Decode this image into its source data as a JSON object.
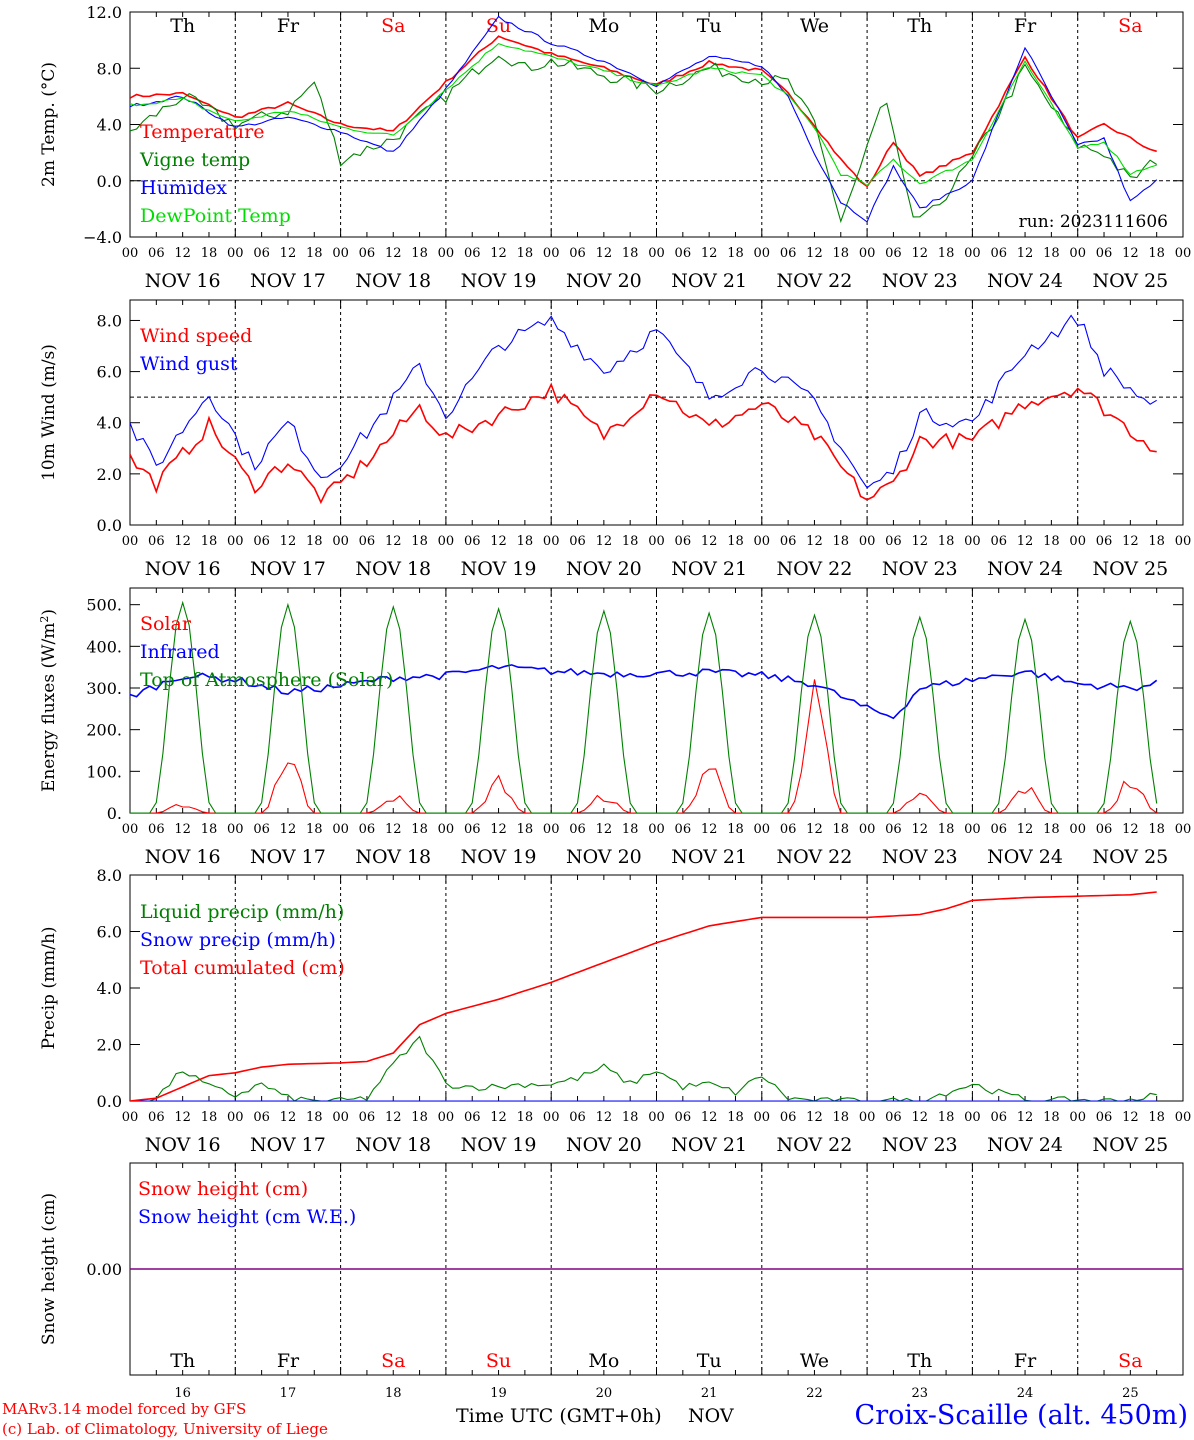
{
  "colors": {
    "red": "#ff0000",
    "green": "#008000",
    "blue": "#0000ff",
    "lightgreen": "#00dd00",
    "purple": "#800080"
  },
  "x_axis": {
    "hour_ticks": [
      "00",
      "06",
      "12",
      "18"
    ],
    "dates": [
      "NOV 16",
      "NOV 17",
      "NOV 18",
      "NOV 19",
      "NOV 20",
      "NOV 21",
      "NOV 22",
      "NOV 23",
      "NOV 24",
      "NOV 25"
    ],
    "weekdays": [
      "Th",
      "Fr",
      "Sa",
      "Su",
      "Mo",
      "Tu",
      "We",
      "Th",
      "Fr",
      "Sa"
    ],
    "weekday_colors": [
      "#000000",
      "#000000",
      "#ff0000",
      "#ff0000",
      "#000000",
      "#000000",
      "#000000",
      "#000000",
      "#000000",
      "#ff0000"
    ],
    "day_numbers": [
      "16",
      "17",
      "18",
      "19",
      "20",
      "21",
      "22",
      "23",
      "24",
      "25"
    ],
    "label": "Time UTC (GMT+0h)",
    "month": "NOV"
  },
  "footer": {
    "line1": "MARv3.14 model forced by GFS",
    "line2": "(c) Lab. of Climatology, University of Liege",
    "station": "Croix-Scaille (alt. 450m)"
  },
  "chart_data": [
    {
      "type": "line",
      "ylabel": "2m Temp. (°C)",
      "ylim": [
        -4,
        12
      ],
      "yticks": [
        "−4.0",
        "0.0",
        "4.0",
        "8.0",
        "12.0"
      ],
      "reference_line": 0,
      "annotation": "run: 2023111606",
      "series": [
        {
          "name": "Temperature",
          "color": "#ff0000",
          "x_hours": [
            0,
            12,
            24,
            36,
            48,
            60,
            72,
            84,
            96,
            108,
            120,
            132,
            144,
            150,
            156,
            162,
            168,
            174,
            180,
            192,
            204,
            216,
            222,
            234
          ],
          "values": [
            6.0,
            6.2,
            4.5,
            5.5,
            4.0,
            3.5,
            7.0,
            10.3,
            9.0,
            8.0,
            6.8,
            8.4,
            7.8,
            6.2,
            4.0,
            1.5,
            -0.5,
            2.8,
            0.3,
            2.0,
            8.8,
            3.0,
            4.0,
            2.0
          ]
        },
        {
          "name": "Vigne temp",
          "color": "#008000",
          "x_hours": [
            0,
            12,
            24,
            36,
            42,
            48,
            60,
            72,
            84,
            90,
            96,
            108,
            120,
            132,
            144,
            150,
            156,
            162,
            166,
            172,
            178,
            182,
            192,
            204,
            216,
            222,
            228,
            234
          ],
          "values": [
            3.5,
            6.0,
            4.0,
            5.0,
            7.0,
            1.5,
            3.0,
            6.0,
            9.2,
            8.0,
            8.5,
            7.5,
            6.5,
            8.0,
            7.2,
            7.0,
            4.0,
            -2.8,
            0.5,
            6.0,
            -2.5,
            -2.6,
            1.5,
            8.0,
            2.5,
            2.0,
            0.0,
            1.5
          ]
        },
        {
          "name": "Humidex",
          "color": "#0000ff",
          "x_hours": [
            0,
            12,
            24,
            36,
            48,
            60,
            72,
            84,
            96,
            108,
            120,
            132,
            144,
            150,
            156,
            162,
            168,
            174,
            180,
            192,
            204,
            216,
            222,
            228,
            234
          ],
          "values": [
            5.3,
            6.0,
            3.8,
            4.5,
            3.5,
            2.0,
            6.5,
            11.6,
            9.8,
            8.5,
            6.8,
            8.8,
            8.2,
            6.0,
            2.0,
            -1.5,
            -2.8,
            1.0,
            -2.0,
            0.0,
            9.5,
            2.5,
            3.0,
            -1.5,
            0.0
          ]
        },
        {
          "name": "DewPoint Temp",
          "color": "#00dd00",
          "x_hours": [
            0,
            12,
            24,
            36,
            48,
            60,
            72,
            84,
            96,
            108,
            120,
            132,
            144,
            150,
            156,
            162,
            168,
            174,
            180,
            192,
            204,
            216,
            222,
            228,
            234
          ],
          "values": [
            5.4,
            5.8,
            4.2,
            5.0,
            3.8,
            3.2,
            6.5,
            9.8,
            8.8,
            7.8,
            6.7,
            8.0,
            7.5,
            6.0,
            3.8,
            0.5,
            -0.3,
            1.5,
            -0.2,
            1.5,
            8.5,
            2.3,
            2.8,
            0.5,
            1.2
          ]
        }
      ]
    },
    {
      "type": "line",
      "ylabel": "10m Wind (m/s)",
      "ylim": [
        0,
        8.8
      ],
      "yticks": [
        "0.0",
        "2.0",
        "4.0",
        "6.0",
        "8.0"
      ],
      "reference_line": 5,
      "series": [
        {
          "name": "Wind speed",
          "color": "#ff0000",
          "x_hours": [
            0,
            6,
            18,
            28,
            36,
            44,
            54,
            66,
            72,
            84,
            96,
            108,
            120,
            132,
            144,
            156,
            168,
            174,
            180,
            192,
            204,
            216,
            228,
            234
          ],
          "values": [
            2.6,
            1.6,
            3.9,
            1.5,
            2.5,
            1.0,
            2.5,
            4.6,
            3.4,
            4.3,
            5.3,
            3.5,
            5.3,
            3.8,
            4.7,
            3.5,
            1.0,
            1.6,
            3.3,
            3.3,
            4.8,
            5.4,
            3.7,
            3.0
          ]
        },
        {
          "name": "Wind gust",
          "color": "#0000ff",
          "x_hours": [
            0,
            6,
            18,
            28,
            36,
            44,
            54,
            66,
            72,
            84,
            96,
            108,
            120,
            132,
            144,
            156,
            168,
            174,
            180,
            192,
            204,
            216,
            222,
            228,
            234
          ],
          "values": [
            3.9,
            2.3,
            5.2,
            2.3,
            4.0,
            1.8,
            3.6,
            6.2,
            4.3,
            7.0,
            8.0,
            6.0,
            7.6,
            5.0,
            6.2,
            4.8,
            1.4,
            2.1,
            4.3,
            4.0,
            6.8,
            8.1,
            6.1,
            5.3,
            4.6
          ]
        }
      ]
    },
    {
      "type": "line",
      "ylabel": "Energy fluxes (W/m2)",
      "ylim": [
        0,
        540
      ],
      "yticks": [
        "0.",
        "100.",
        "200.",
        "300.",
        "400.",
        "500."
      ],
      "series": [
        {
          "name": "Solar",
          "color": "#ff0000",
          "daily_peaks": [
            25,
            165,
            50,
            95,
            50,
            140,
            330,
            55,
            75,
            95
          ]
        },
        {
          "name": "Infrared",
          "color": "#0000ff",
          "x_hours": [
            0,
            12,
            24,
            36,
            48,
            60,
            72,
            84,
            96,
            108,
            120,
            132,
            144,
            156,
            168,
            174,
            180,
            192,
            204,
            216,
            228,
            234
          ],
          "values": [
            280,
            330,
            320,
            290,
            305,
            325,
            330,
            350,
            340,
            335,
            335,
            338,
            330,
            310,
            250,
            230,
            300,
            320,
            340,
            310,
            300,
            310
          ]
        },
        {
          "name": "Top of Atmosphere (Solar)",
          "color": "#008000",
          "daily_peaks": [
            505,
            500,
            495,
            490,
            485,
            480,
            475,
            470,
            465,
            460
          ]
        }
      ]
    },
    {
      "type": "line",
      "ylabel": "Precip (mm/h)",
      "ylim": [
        0,
        8
      ],
      "yticks": [
        "0.0",
        "2.0",
        "4.0",
        "6.0",
        "8.0"
      ],
      "series": [
        {
          "name": "Liquid precip (mm/h)",
          "color": "#008000",
          "x_hours": [
            0,
            6,
            12,
            18,
            24,
            30,
            36,
            42,
            48,
            54,
            60,
            66,
            72,
            78,
            84,
            90,
            96,
            102,
            108,
            114,
            120,
            126,
            132,
            138,
            144,
            150,
            156,
            180,
            186,
            192,
            198,
            204,
            210,
            216,
            222,
            228,
            234
          ],
          "values": [
            0,
            0.1,
            1.1,
            0.5,
            0.2,
            0.6,
            0.1,
            0,
            0,
            0.1,
            1.3,
            2.2,
            0.6,
            0.5,
            0.5,
            0.6,
            0.6,
            0.8,
            1.2,
            0.6,
            1.1,
            0.5,
            0.6,
            0.3,
            0.9,
            0.1,
            0,
            0,
            0.3,
            0.6,
            0.3,
            0.05,
            0,
            0.05,
            0,
            0.05,
            0.2
          ]
        },
        {
          "name": "Snow precip (mm/h)",
          "color": "#0000ff",
          "x_hours": [
            0,
            234
          ],
          "values": [
            0,
            0
          ]
        },
        {
          "name": "Total cumulated (cm)",
          "color": "#ff0000",
          "x_hours": [
            0,
            6,
            12,
            18,
            24,
            30,
            36,
            48,
            54,
            60,
            66,
            72,
            84,
            96,
            108,
            120,
            132,
            144,
            168,
            180,
            186,
            192,
            204,
            216,
            228,
            234
          ],
          "values": [
            0,
            0.1,
            0.5,
            0.9,
            1.0,
            1.2,
            1.3,
            1.35,
            1.4,
            1.7,
            2.7,
            3.1,
            3.6,
            4.2,
            4.9,
            5.6,
            6.2,
            6.5,
            6.5,
            6.6,
            6.8,
            7.1,
            7.2,
            7.25,
            7.3,
            7.4
          ]
        }
      ]
    },
    {
      "type": "line",
      "ylabel": "Snow height (cm)",
      "ylim": [
        -1,
        1
      ],
      "yticks": [
        "0.00"
      ],
      "series": [
        {
          "name": "Snow height (cm)",
          "color": "#ff0000",
          "x_hours": [
            0,
            240
          ],
          "values": [
            0,
            0
          ]
        },
        {
          "name": "Snow height (cm W.E.)",
          "color": "#0000ff",
          "x_hours": [
            0,
            240
          ],
          "values": [
            0,
            0
          ]
        }
      ]
    }
  ]
}
